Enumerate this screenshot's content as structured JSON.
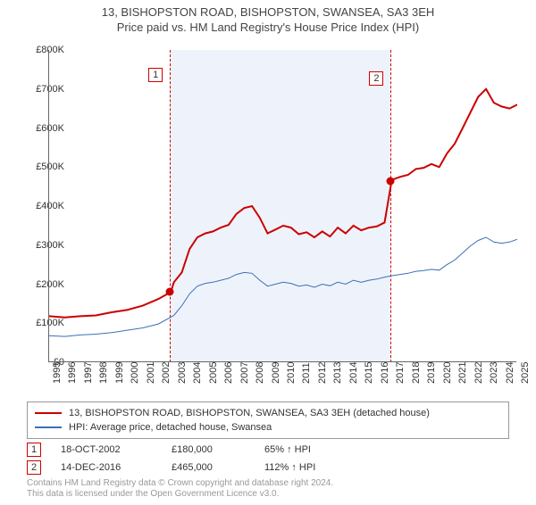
{
  "title": "13, BISHOPSTON ROAD, BISHOPSTON, SWANSEA, SA3 3EH",
  "subtitle": "Price paid vs. HM Land Registry's House Price Index (HPI)",
  "chart": {
    "type": "line",
    "background_color": "#ffffff",
    "shade_color": "#eef3fb",
    "axis_color": "#666666",
    "text_color": "#333333",
    "y": {
      "min": 0,
      "max": 800,
      "step": 100,
      "fmt_prefix": "£",
      "fmt_suffix": "K"
    },
    "x": {
      "min": 1995,
      "max": 2025,
      "years": [
        1995,
        1996,
        1997,
        1998,
        1999,
        2000,
        2001,
        2002,
        2003,
        2004,
        2005,
        2006,
        2007,
        2008,
        2009,
        2010,
        2011,
        2012,
        2013,
        2014,
        2015,
        2016,
        2017,
        2018,
        2019,
        2020,
        2021,
        2022,
        2023,
        2024,
        2025
      ]
    },
    "vlines": [
      {
        "id": "1",
        "year": 2002.8
      },
      {
        "id": "2",
        "year": 2016.95
      }
    ],
    "shade_span": {
      "from_year": 2002.8,
      "to_year": 2016.95
    },
    "series": [
      {
        "name": "13, BISHOPSTON ROAD, BISHOPSTON, SWANSEA, SA3 3EH (detached house)",
        "color": "#cc0000",
        "width": 2,
        "points": [
          [
            1995,
            118
          ],
          [
            1996,
            115
          ],
          [
            1997,
            118
          ],
          [
            1998,
            120
          ],
          [
            1999,
            128
          ],
          [
            2000,
            134
          ],
          [
            2001,
            145
          ],
          [
            2002,
            162
          ],
          [
            2002.8,
            180
          ],
          [
            2003,
            205
          ],
          [
            2003.5,
            230
          ],
          [
            2004,
            290
          ],
          [
            2004.5,
            320
          ],
          [
            2005,
            330
          ],
          [
            2005.5,
            335
          ],
          [
            2006,
            345
          ],
          [
            2006.5,
            352
          ],
          [
            2007,
            380
          ],
          [
            2007.5,
            395
          ],
          [
            2008,
            400
          ],
          [
            2008.5,
            370
          ],
          [
            2009,
            330
          ],
          [
            2009.5,
            340
          ],
          [
            2010,
            350
          ],
          [
            2010.5,
            345
          ],
          [
            2011,
            328
          ],
          [
            2011.5,
            333
          ],
          [
            2012,
            320
          ],
          [
            2012.5,
            335
          ],
          [
            2013,
            322
          ],
          [
            2013.5,
            345
          ],
          [
            2014,
            330
          ],
          [
            2014.5,
            350
          ],
          [
            2015,
            338
          ],
          [
            2015.5,
            345
          ],
          [
            2016,
            348
          ],
          [
            2016.5,
            358
          ],
          [
            2016.95,
            465
          ],
          [
            2017,
            468
          ],
          [
            2017.5,
            475
          ],
          [
            2018,
            480
          ],
          [
            2018.5,
            495
          ],
          [
            2019,
            498
          ],
          [
            2019.5,
            508
          ],
          [
            2020,
            500
          ],
          [
            2020.5,
            535
          ],
          [
            2021,
            560
          ],
          [
            2021.5,
            600
          ],
          [
            2022,
            640
          ],
          [
            2022.5,
            680
          ],
          [
            2023,
            700
          ],
          [
            2023.5,
            665
          ],
          [
            2024,
            655
          ],
          [
            2024.5,
            650
          ],
          [
            2025,
            660
          ]
        ],
        "markers": [
          {
            "year": 2002.8,
            "value": 180
          },
          {
            "year": 2016.95,
            "value": 465
          }
        ]
      },
      {
        "name": "HPI: Average price, detached house, Swansea",
        "color": "#3b6fb6",
        "width": 1,
        "points": [
          [
            1995,
            68
          ],
          [
            1996,
            66
          ],
          [
            1997,
            70
          ],
          [
            1998,
            72
          ],
          [
            1999,
            76
          ],
          [
            2000,
            82
          ],
          [
            2001,
            88
          ],
          [
            2002,
            98
          ],
          [
            2003,
            120
          ],
          [
            2003.5,
            145
          ],
          [
            2004,
            175
          ],
          [
            2004.5,
            195
          ],
          [
            2005,
            202
          ],
          [
            2005.5,
            205
          ],
          [
            2006,
            210
          ],
          [
            2006.5,
            215
          ],
          [
            2007,
            225
          ],
          [
            2007.5,
            230
          ],
          [
            2008,
            228
          ],
          [
            2008.5,
            210
          ],
          [
            2009,
            195
          ],
          [
            2009.5,
            200
          ],
          [
            2010,
            205
          ],
          [
            2010.5,
            202
          ],
          [
            2011,
            195
          ],
          [
            2011.5,
            198
          ],
          [
            2012,
            192
          ],
          [
            2012.5,
            200
          ],
          [
            2013,
            196
          ],
          [
            2013.5,
            205
          ],
          [
            2014,
            200
          ],
          [
            2014.5,
            210
          ],
          [
            2015,
            205
          ],
          [
            2015.5,
            210
          ],
          [
            2016,
            213
          ],
          [
            2016.5,
            218
          ],
          [
            2017,
            222
          ],
          [
            2017.5,
            225
          ],
          [
            2018,
            228
          ],
          [
            2018.5,
            233
          ],
          [
            2019,
            235
          ],
          [
            2019.5,
            238
          ],
          [
            2020,
            236
          ],
          [
            2020.5,
            250
          ],
          [
            2021,
            262
          ],
          [
            2021.5,
            280
          ],
          [
            2022,
            298
          ],
          [
            2022.5,
            312
          ],
          [
            2023,
            320
          ],
          [
            2023.5,
            308
          ],
          [
            2024,
            305
          ],
          [
            2024.5,
            308
          ],
          [
            2025,
            315
          ]
        ]
      }
    ]
  },
  "legend": {
    "rows": [
      {
        "color": "#cc0000",
        "label": "13, BISHOPSTON ROAD, BISHOPSTON, SWANSEA, SA3 3EH (detached house)"
      },
      {
        "color": "#3b6fb6",
        "label": "HPI: Average price, detached house, Swansea"
      }
    ]
  },
  "events": [
    {
      "id": "1",
      "date": "18-OCT-2002",
      "price": "£180,000",
      "delta": "65% ↑ HPI"
    },
    {
      "id": "2",
      "date": "14-DEC-2016",
      "price": "£465,000",
      "delta": "112% ↑ HPI"
    }
  ],
  "footer": {
    "l1": "Contains HM Land Registry data © Crown copyright and database right 2024.",
    "l2": "This data is licensed under the Open Government Licence v3.0."
  }
}
